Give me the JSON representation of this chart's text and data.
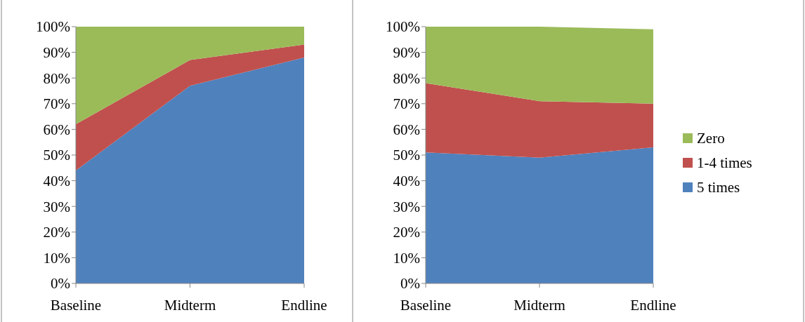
{
  "chart_data": [
    {
      "type": "area",
      "stacked": true,
      "categories": [
        "Baseline",
        "Midterm",
        "Endline"
      ],
      "series": [
        {
          "color": "#4f81bd",
          "values": [
            44,
            77,
            88
          ]
        },
        {
          "color": "#c0504d",
          "values": [
            18,
            10,
            5
          ]
        },
        {
          "color": "#9bbb59",
          "values": [
            38,
            13,
            7
          ]
        }
      ],
      "ylim": [
        0,
        100
      ],
      "yticks": [
        {
          "value": 0,
          "label": "0%"
        },
        {
          "value": 10,
          "label": "10%"
        },
        {
          "value": 20,
          "label": "20%"
        },
        {
          "value": 30,
          "label": "30%"
        },
        {
          "value": 40,
          "label": "40%"
        },
        {
          "value": 50,
          "label": "50%"
        },
        {
          "value": 60,
          "label": "60%"
        },
        {
          "value": 70,
          "label": "70%"
        },
        {
          "value": 80,
          "label": "80%"
        },
        {
          "value": 90,
          "label": "90%"
        },
        {
          "value": 100,
          "label": "100%"
        }
      ],
      "grid": false,
      "legend": false
    },
    {
      "type": "area",
      "stacked": true,
      "categories": [
        "Baseline",
        "Midterm",
        "Endline"
      ],
      "series": [
        {
          "name": "5 times",
          "color": "#4f81bd",
          "values": [
            51,
            49,
            53
          ]
        },
        {
          "name": "1-4 times",
          "color": "#c0504d",
          "values": [
            27,
            22,
            17
          ]
        },
        {
          "name": "Zero",
          "color": "#9bbb59",
          "values": [
            22,
            29,
            29
          ]
        }
      ],
      "ylim": [
        0,
        100
      ],
      "yticks": [
        {
          "value": 0,
          "label": "0%"
        },
        {
          "value": 10,
          "label": "10%"
        },
        {
          "value": 20,
          "label": "20%"
        },
        {
          "value": 30,
          "label": "30%"
        },
        {
          "value": 40,
          "label": "40%"
        },
        {
          "value": 50,
          "label": "50%"
        },
        {
          "value": 60,
          "label": "60%"
        },
        {
          "value": 70,
          "label": "70%"
        },
        {
          "value": 80,
          "label": "80%"
        },
        {
          "value": 90,
          "label": "90%"
        },
        {
          "value": 100,
          "label": "100%"
        }
      ],
      "grid": false,
      "legend": "right"
    }
  ]
}
